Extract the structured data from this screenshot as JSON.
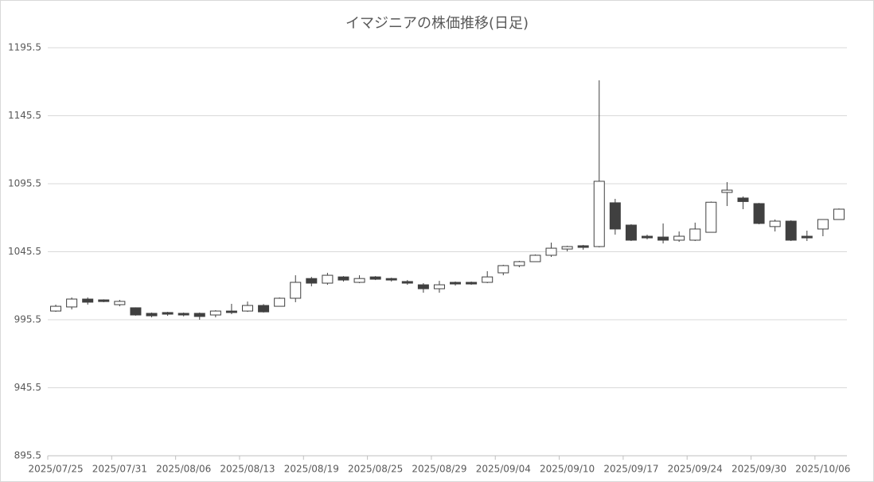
{
  "chart_data": {
    "type": "candlestick",
    "title": "イマジニアの株価推移(日足)",
    "categories": [
      "2025/07/25",
      null,
      null,
      null,
      "2025/07/31",
      null,
      null,
      null,
      "2025/08/06",
      null,
      null,
      null,
      "2025/08/13",
      null,
      null,
      null,
      "2025/08/19",
      null,
      null,
      null,
      "2025/08/25",
      null,
      null,
      null,
      "2025/08/29",
      null,
      null,
      null,
      "2025/09/04",
      null,
      null,
      null,
      "2025/09/10",
      null,
      null,
      null,
      "2025/09/17",
      null,
      null,
      null,
      "2025/09/24",
      null,
      null,
      null,
      "2025/09/30",
      null,
      null,
      null,
      "2025/10/06",
      null
    ],
    "open": [
      1001.9,
      1004.9,
      1010.7,
      1010.1,
      1006.6,
      1004.3,
      1000.2,
      1000.8,
      1000.2,
      1000.2,
      999.0,
      1001.9,
      1001.9,
      1006.0,
      1005.4,
      1011.3,
      1025.8,
      1022.4,
      1027.0,
      1023.0,
      1027.0,
      1025.8,
      1023.6,
      1021.2,
      1018.3,
      1023.0,
      1023.0,
      1023.0,
      1030.0,
      1035.3,
      1038.2,
      1042.9,
      1047.5,
      1049.9,
      1049.3,
      1081.5,
      1065.1,
      1056.9,
      1056.3,
      1054.0,
      1054.0,
      1059.8,
      1089.1,
      1085.0,
      1080.9,
      1064.0,
      1068.0,
      1056.9,
      1062.2,
      1069.2
    ],
    "high": [
      1006.6,
      1011.9,
      1011.9,
      1010.5,
      1010.1,
      1004.6,
      1000.8,
      1001.3,
      1000.8,
      1000.8,
      1002.5,
      1007.2,
      1008.9,
      1007.0,
      1011.9,
      1028.2,
      1027.0,
      1030.0,
      1027.6,
      1028.2,
      1027.6,
      1026.4,
      1024.7,
      1022.4,
      1024.1,
      1023.6,
      1023.6,
      1031.2,
      1035.9,
      1038.8,
      1043.5,
      1052.2,
      1049.9,
      1050.5,
      1171.5,
      1084.4,
      1065.7,
      1058.1,
      1066.3,
      1060.4,
      1066.9,
      1082.4,
      1096.7,
      1086.1,
      1081.4,
      1069.2,
      1068.6,
      1061.0,
      1069.2,
      1077.3
    ],
    "low": [
      1001.3,
      1003.1,
      1006.6,
      1008.4,
      1005.4,
      998.5,
      997.3,
      998.4,
      998.0,
      995.5,
      997.3,
      999.6,
      1001.3,
      1000.8,
      1005.4,
      1008.4,
      1020.1,
      1021.2,
      1023.6,
      1022.4,
      1024.7,
      1023.6,
      1021.2,
      1015.4,
      1015.4,
      1020.6,
      1021.2,
      1022.4,
      1028.2,
      1034.1,
      1038.2,
      1041.7,
      1045.8,
      1047.0,
      1048.7,
      1058.1,
      1053.4,
      1054.6,
      1051.6,
      1052.8,
      1053.4,
      1059.8,
      1079.1,
      1076.8,
      1065.7,
      1060.4,
      1053.4,
      1053.4,
      1056.9,
      1069.2
    ],
    "close": [
      1005.4,
      1010.7,
      1008.4,
      1008.9,
      1009.0,
      999.0,
      998.4,
      999.6,
      999.0,
      997.9,
      1001.9,
      1000.8,
      1006.0,
      1001.3,
      1011.3,
      1023.0,
      1022.4,
      1028.2,
      1024.7,
      1025.8,
      1025.3,
      1024.7,
      1022.4,
      1018.3,
      1021.2,
      1021.8,
      1021.8,
      1027.0,
      1035.3,
      1038.2,
      1042.9,
      1048.1,
      1049.3,
      1048.7,
      1097.3,
      1062.2,
      1054.0,
      1055.7,
      1054.0,
      1056.9,
      1062.2,
      1081.9,
      1090.8,
      1082.4,
      1066.3,
      1068.0,
      1054.0,
      1055.7,
      1069.2,
      1076.8
    ],
    "up_color": "#ffffff",
    "down_color": "#404040",
    "border_color": "#404040",
    "ylim": [
      895.5,
      1195.5
    ],
    "yticks": [
      895.5,
      945.5,
      995.5,
      1045.5,
      1095.5,
      1145.5,
      1195.5
    ],
    "grid": true
  }
}
